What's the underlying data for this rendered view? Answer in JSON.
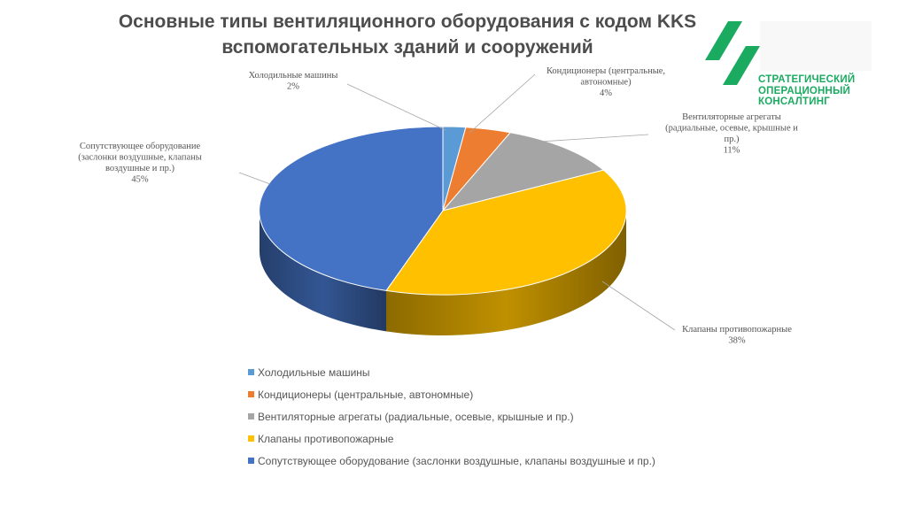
{
  "title": "Основные типы вентиляционного оборудования с кодом KKS вспомогательных зданий и сооружений",
  "logo": {
    "lines": [
      "СТРАТЕГИЧЕСКИЙ",
      "ОПЕРАЦИОННЫЙ",
      "КОНСАЛТИНГ"
    ],
    "color": "#1aab61"
  },
  "chart_data": {
    "type": "pie",
    "style": "3d-pie",
    "legend_position": "bottom",
    "categories": [
      "Холодильные машины",
      "Кондиционеры (центральные, автономные)",
      "Вентиляторные агрегаты (радиальные, осевые, крышные и пр.)",
      "Клапаны противопожарные",
      "Сопутствующее оборудование (заслонки воздушные, клапаны воздушные и пр.)"
    ],
    "values": [
      2,
      4,
      11,
      38,
      45
    ],
    "value_labels": [
      "2%",
      "4%",
      "11%",
      "38%",
      "45%"
    ],
    "colors": [
      "#5b9bd5",
      "#ed7d31",
      "#a5a5a5",
      "#ffc000",
      "#4472c4"
    ],
    "data_labels": [
      {
        "lines": [
          "Холодильные машины"
        ],
        "value": "2%"
      },
      {
        "lines": [
          "Кондиционеры (центральные,",
          "автономные)"
        ],
        "value": "4%"
      },
      {
        "lines": [
          "Вентиляторные агрегаты",
          "(радиальные, осевые, крышные и",
          "пр.)"
        ],
        "value": "11%"
      },
      {
        "lines": [
          "Клапаны противопожарные"
        ],
        "value": "38%"
      },
      {
        "lines": [
          "Сопутствующее оборудование",
          "(заслонки воздушные, клапаны",
          "воздушные и пр.)"
        ],
        "value": "45%"
      }
    ]
  }
}
